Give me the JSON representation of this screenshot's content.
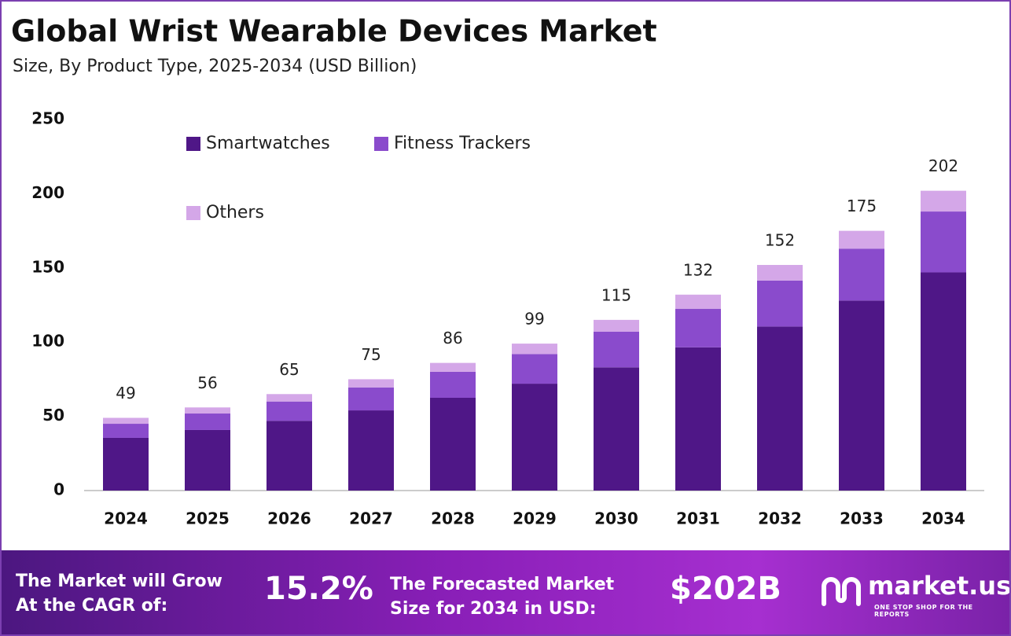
{
  "chart_data": {
    "type": "stacked-bar",
    "title": "Global Wrist Wearable Devices Market",
    "subtitle": "Size, By Product Type, 2025-2034 (USD Billion)",
    "categories": [
      "2024",
      "2025",
      "2026",
      "2027",
      "2028",
      "2029",
      "2030",
      "2031",
      "2032",
      "2033",
      "2034"
    ],
    "series": [
      {
        "name": "Smartwatches",
        "color": "#4f1787",
        "values": [
          35.5,
          40.8,
          47,
          54,
          62.5,
          72,
          83,
          96.5,
          110.5,
          128,
          147
        ]
      },
      {
        "name": "Fitness Trackers",
        "color": "#8a4bcc",
        "values": [
          9.5,
          11.1,
          13,
          15.5,
          17.5,
          20,
          24,
          26,
          31,
          35,
          41
        ]
      },
      {
        "name": "Others",
        "color": "#d4a7e8",
        "values": [
          4,
          4.1,
          5,
          5.5,
          6,
          7,
          8,
          9.5,
          10.5,
          12,
          14
        ]
      }
    ],
    "totals": [
      49,
      56,
      65,
      75,
      86,
      99,
      115,
      132,
      152,
      175,
      202
    ],
    "ylim": [
      0,
      250
    ],
    "yticks": [
      0,
      50,
      100,
      150,
      200,
      250
    ],
    "grid": false
  },
  "footer": {
    "cagr_label": [
      "The Market will Grow",
      "At the CAGR of:"
    ],
    "cagr": "15.2%",
    "forecast_label": [
      "The Forecasted Market",
      "Size for 2034 in USD:"
    ],
    "forecast": "$202B",
    "brand": "market.us",
    "tagline": "ONE STOP SHOP FOR THE REPORTS"
  }
}
